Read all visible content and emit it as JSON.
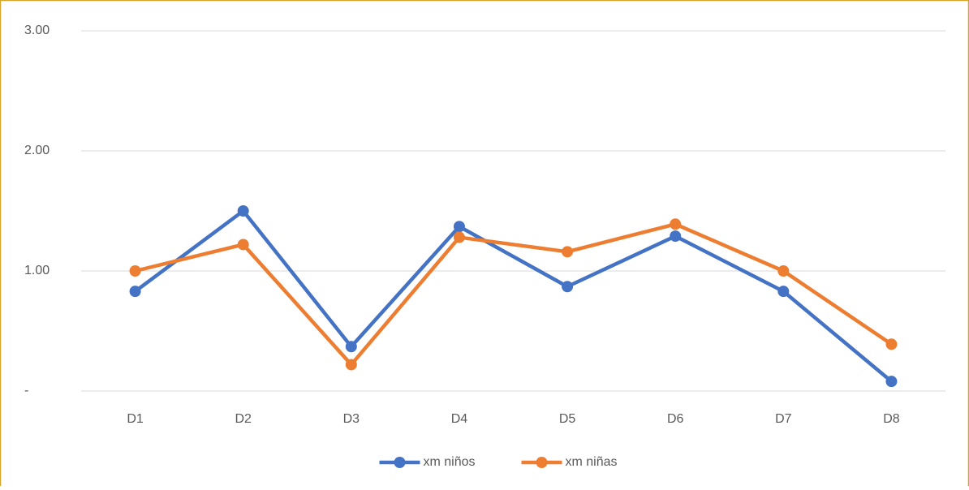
{
  "chart_data": {
    "type": "line",
    "categories": [
      "D1",
      "D2",
      "D3",
      "D4",
      "D5",
      "D6",
      "D7",
      "D8"
    ],
    "series": [
      {
        "name": "xm niños",
        "color": "#4472c4",
        "values": [
          0.83,
          1.5,
          0.37,
          1.37,
          0.87,
          1.29,
          0.83,
          0.08
        ]
      },
      {
        "name": "xm niñas",
        "color": "#ed7d31",
        "values": [
          1.0,
          1.22,
          0.22,
          1.28,
          1.16,
          1.39,
          1.0,
          0.39
        ]
      }
    ],
    "ylim": [
      0,
      3
    ],
    "yticks": [
      {
        "value": 0,
        "label": "-"
      },
      {
        "value": 1,
        "label": "1.00"
      },
      {
        "value": 2,
        "label": "2.00"
      },
      {
        "value": 3,
        "label": "3.00"
      }
    ],
    "grid": true,
    "legend": "bottom"
  }
}
